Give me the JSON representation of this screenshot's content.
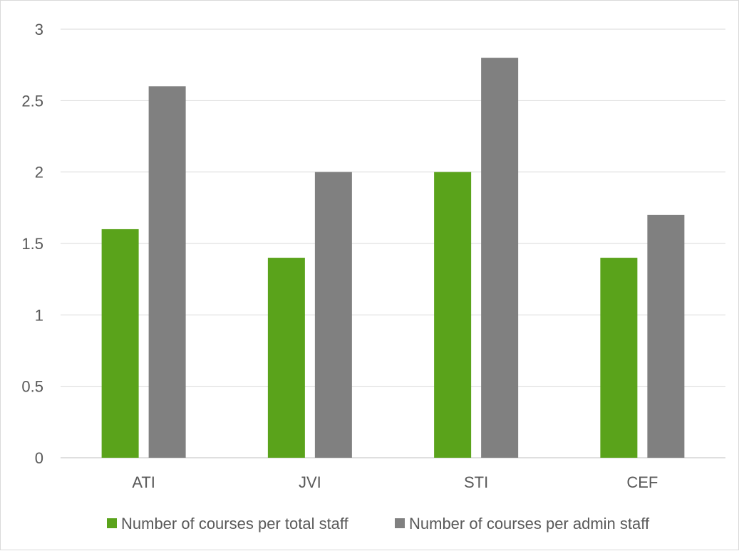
{
  "chart_data": {
    "type": "bar",
    "title": "",
    "xlabel": "",
    "ylabel": "",
    "categories": [
      "ATI",
      "JVI",
      "STI",
      "CEF"
    ],
    "series": [
      {
        "name": "Number of courses per total staff",
        "color": "#5aa31b",
        "values": [
          1.6,
          1.4,
          2.0,
          1.4
        ]
      },
      {
        "name": "Number of courses per admin staff",
        "color": "#808080",
        "values": [
          2.6,
          2.0,
          2.8,
          1.7
        ]
      }
    ],
    "ylim": [
      0,
      3
    ],
    "yticks": [
      "0",
      "0.5",
      "1",
      "1.5",
      "2",
      "2.5",
      "3"
    ],
    "grid": true,
    "legend_position": "bottom"
  }
}
